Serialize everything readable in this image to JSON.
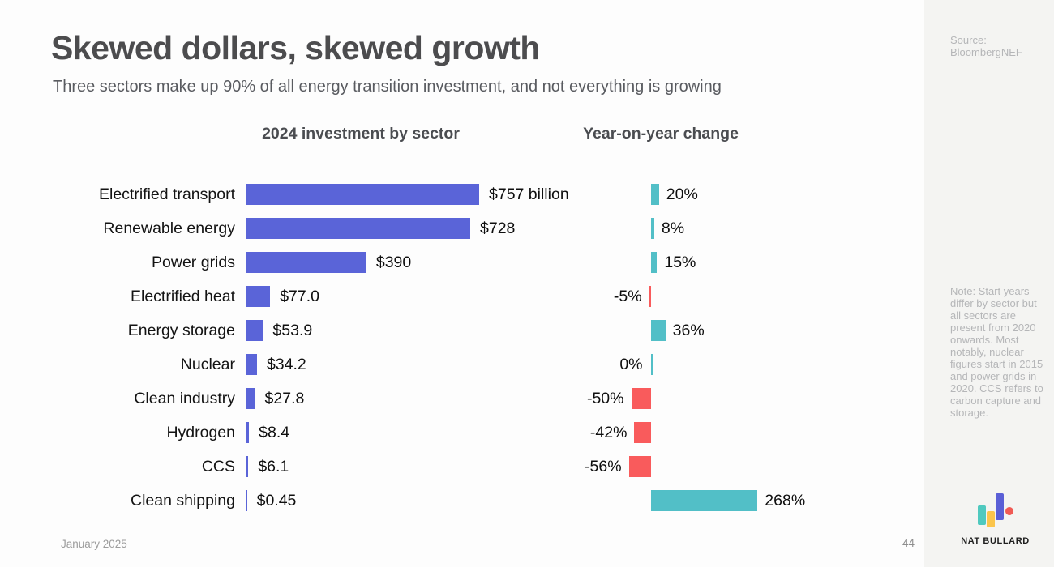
{
  "slide": {
    "title": "Skewed dollars, skewed growth",
    "subtitle": "Three sectors make up 90% of all energy transition investment, and not everything is growing",
    "left_header": "2024 investment by sector",
    "right_header": "Year-on-year change",
    "footer_date": "January 2025",
    "page_number": "44"
  },
  "sidebar": {
    "source": "Source: BloombergNEF",
    "note": "Note: Start years differ by sector but all sectors are present from 2020 onwards. Most notably, nuclear figures start in 2015 and power grids in 2020. CCS refers to carbon capture and storage.",
    "brand": "NAT BULLARD"
  },
  "chart_data": {
    "type": "bar",
    "orientation": "horizontal",
    "title": "Skewed dollars, skewed growth",
    "subtitle": "Three sectors make up 90% of all energy transition investment, and not everything is growing",
    "categories": [
      "Electrified transport",
      "Renewable energy",
      "Power grids",
      "Electrified heat",
      "Energy storage",
      "Nuclear",
      "Clean industry",
      "Hydrogen",
      "CCS",
      "Clean shipping"
    ],
    "series": [
      {
        "name": "2024 investment by sector",
        "unit": "USD billion",
        "values": [
          757,
          728,
          390,
          77.0,
          53.9,
          34.2,
          27.8,
          8.4,
          6.1,
          0.45
        ],
        "labels": [
          "$757 billion",
          "$728",
          "$390",
          "$77.0",
          "$53.9",
          "$34.2",
          "$27.8",
          "$8.4",
          "$6.1",
          "$0.45"
        ],
        "bar_color": "#5a64d8",
        "xlim": [
          0,
          760
        ]
      },
      {
        "name": "Year-on-year change",
        "unit": "%",
        "values": [
          20,
          8,
          15,
          -5,
          36,
          0,
          -50,
          -42,
          -56,
          268
        ],
        "labels": [
          "20%",
          "8%",
          "15%",
          "-5%",
          "36%",
          "0%",
          "-50%",
          "-42%",
          "-56%",
          "268%"
        ],
        "positive_color": "#52bfc7",
        "negative_color": "#f95b5c",
        "xlim": [
          -56,
          268
        ]
      }
    ],
    "legend": "none",
    "grid": false
  },
  "colors": {
    "background": "#fdfdfd",
    "sidebar_bg": "#f4f4f2",
    "axis": "#d9d9d9",
    "title": "#4c4c4e",
    "subtitle": "#595b60",
    "investment_bar": "#5a64d8",
    "yoy_positive": "#52bfc7",
    "yoy_negative": "#f95b5c",
    "logo_teal": "#4fc9bf",
    "logo_yellow": "#fbc54c",
    "logo_blue": "#5a5fd6",
    "logo_red": "#f05a54"
  }
}
